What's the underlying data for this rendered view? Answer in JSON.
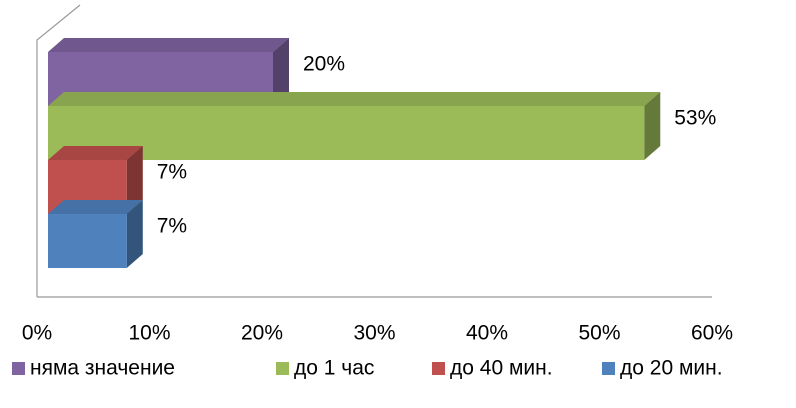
{
  "chart_data": {
    "type": "bar",
    "orientation": "horizontal",
    "series": [
      {
        "name": "няма значение",
        "color": "#8064a2",
        "values": [
          20
        ],
        "value_labels": [
          "20%"
        ]
      },
      {
        "name": "до 1 час",
        "color": "#9bbb59",
        "values": [
          53
        ],
        "value_labels": [
          "53%"
        ]
      },
      {
        "name": "до 40 мин.",
        "color": "#c0504d",
        "values": [
          7
        ],
        "value_labels": [
          "7%"
        ]
      },
      {
        "name": "до 20 мин.",
        "color": "#4f81bd",
        "values": [
          7
        ],
        "value_labels": [
          "7%"
        ]
      }
    ],
    "xlim": [
      0,
      60
    ],
    "xticks": [
      {
        "value": 0,
        "label": "0%"
      },
      {
        "value": 10,
        "label": "10%"
      },
      {
        "value": 20,
        "label": "20%"
      },
      {
        "value": 30,
        "label": "30%"
      },
      {
        "value": 40,
        "label": "40%"
      },
      {
        "value": 50,
        "label": "50%"
      },
      {
        "value": 60,
        "label": "60%"
      }
    ],
    "legend": "bottom"
  }
}
